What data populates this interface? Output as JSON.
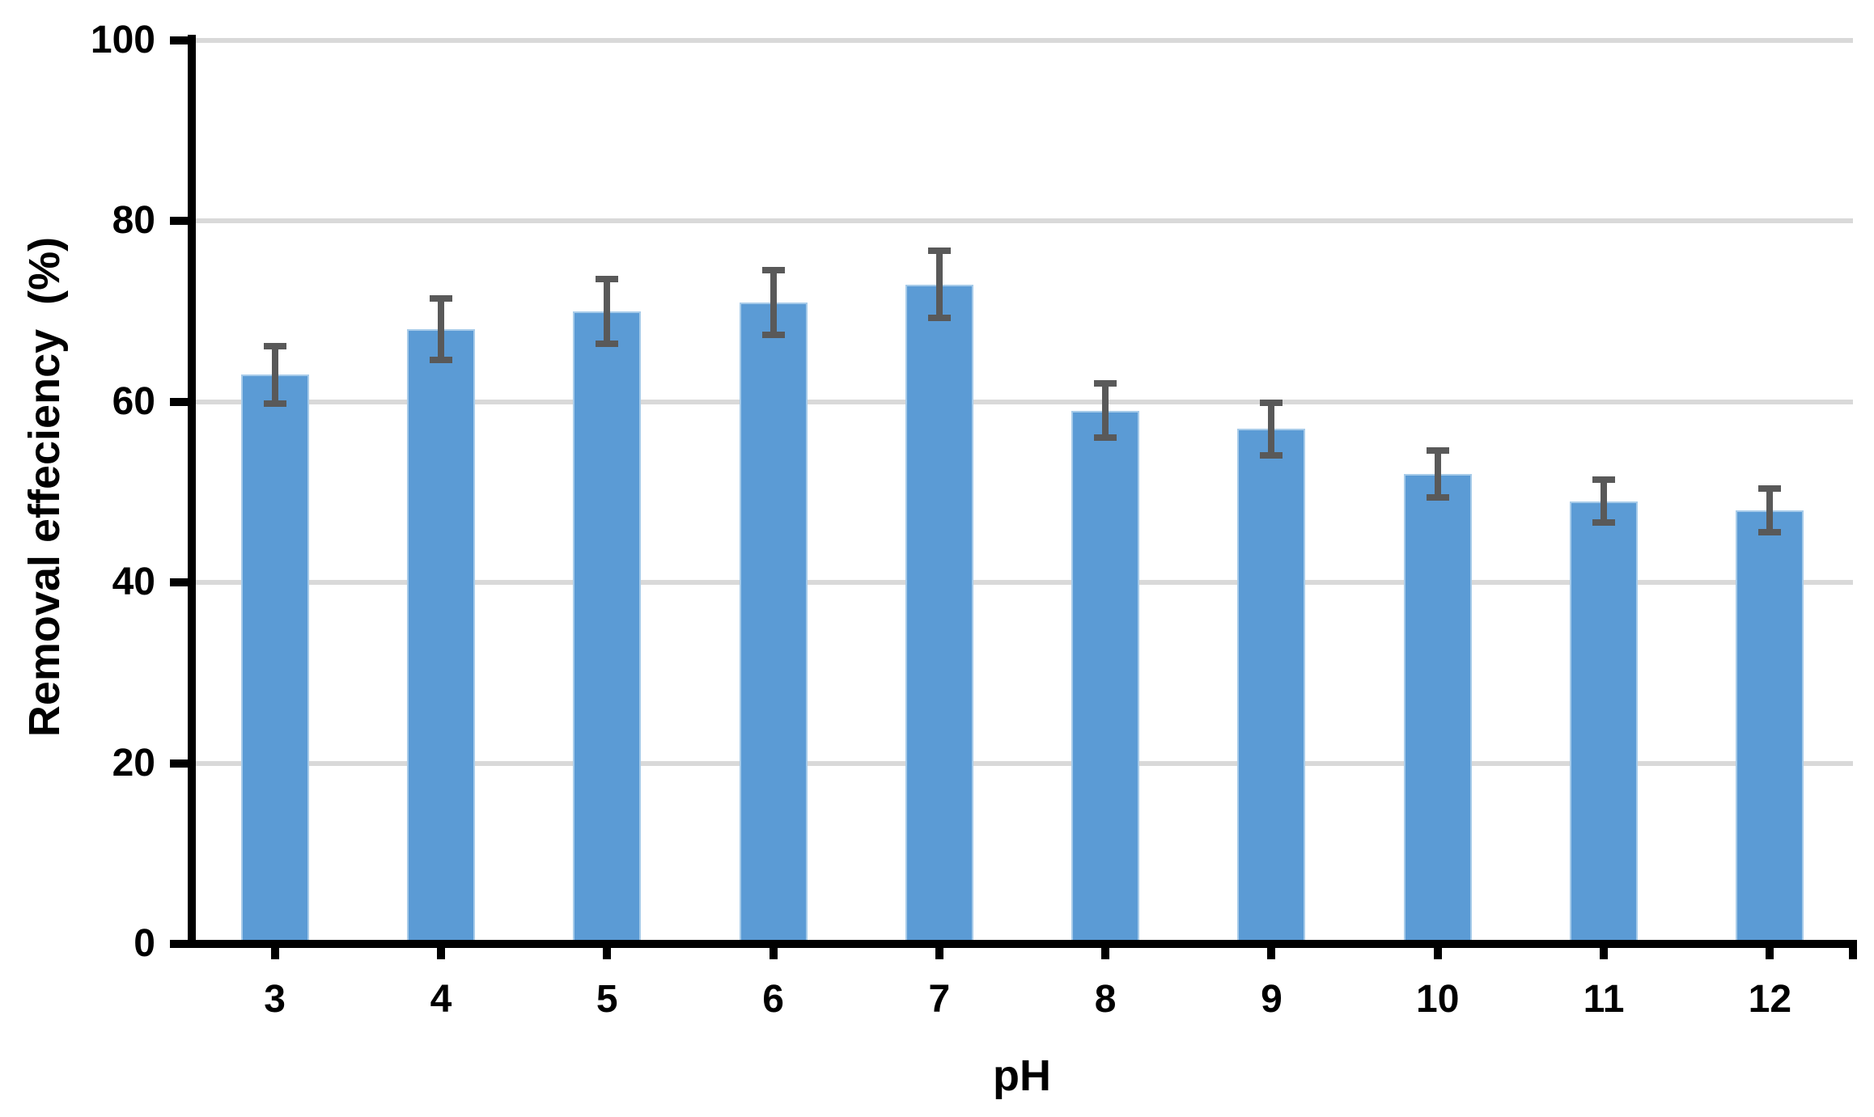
{
  "chart_data": {
    "type": "bar",
    "title": "",
    "xlabel": "pH",
    "ylabel": "Removal effeciency  (%)",
    "categories": [
      "3",
      "4",
      "5",
      "6",
      "7",
      "8",
      "9",
      "10",
      "11",
      "12"
    ],
    "values": [
      63,
      68,
      70,
      71,
      73,
      59,
      57,
      52,
      49,
      48
    ],
    "errors": [
      3.2,
      3.4,
      3.6,
      3.6,
      3.7,
      3.0,
      2.9,
      2.6,
      2.4,
      2.4
    ],
    "ylim": [
      0,
      100
    ],
    "yticks": [
      0,
      20,
      40,
      60,
      80,
      100
    ],
    "grid": "horizontal-only",
    "legend": "none",
    "colors": {
      "bar_fill": "#5B9BD5",
      "bar_edge": "#A7CBE9",
      "error_bar": "#595959",
      "gridline": "#D9D9D9",
      "axis": "#000000",
      "text": "#000000",
      "background": "#FFFFFF"
    }
  }
}
